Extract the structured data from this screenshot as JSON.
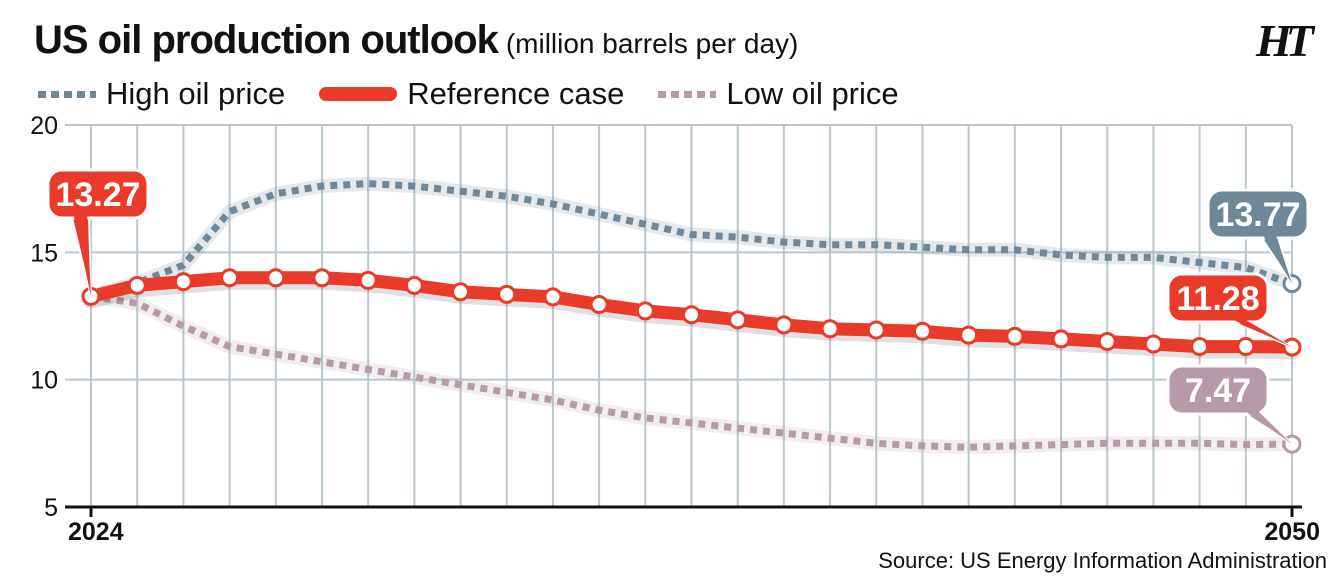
{
  "header": {
    "title": "US oil production outlook",
    "subtitle": "(million barrels per day)",
    "logo": "HT"
  },
  "legend": {
    "high": "High oil price",
    "reference": "Reference case",
    "low": "Low oil price"
  },
  "source": "Source: US Energy Information Administration",
  "colors": {
    "high": "#6f8796",
    "reference": "#e93a2a",
    "low": "#b69aa8",
    "grid": "#b9c8d0"
  },
  "chart_data": {
    "type": "line",
    "title": "US oil production outlook",
    "subtitle": "(million barrels per day)",
    "xlabel": "",
    "ylabel": "",
    "x": [
      2024,
      2025,
      2026,
      2027,
      2028,
      2029,
      2030,
      2031,
      2032,
      2033,
      2034,
      2035,
      2036,
      2037,
      2038,
      2039,
      2040,
      2041,
      2042,
      2043,
      2044,
      2045,
      2046,
      2047,
      2048,
      2049,
      2050
    ],
    "x_tick_labels": [
      "2024",
      "2050"
    ],
    "ylim": [
      5,
      20
    ],
    "y_ticks": [
      5,
      10,
      15,
      20
    ],
    "grid": true,
    "legend_position": "top-left",
    "series": [
      {
        "name": "High oil price",
        "style": "dotted",
        "values": [
          13.27,
          13.8,
          14.5,
          16.6,
          17.3,
          17.6,
          17.7,
          17.6,
          17.4,
          17.2,
          16.9,
          16.5,
          16.1,
          15.7,
          15.6,
          15.4,
          15.3,
          15.3,
          15.2,
          15.1,
          15.1,
          14.9,
          14.8,
          14.8,
          14.6,
          14.4,
          13.77
        ],
        "end_label": "13.77"
      },
      {
        "name": "Reference case",
        "style": "solid",
        "values": [
          13.27,
          13.7,
          13.85,
          14.0,
          14.0,
          14.0,
          13.9,
          13.7,
          13.45,
          13.35,
          13.25,
          12.95,
          12.7,
          12.55,
          12.35,
          12.15,
          12.0,
          11.95,
          11.9,
          11.75,
          11.7,
          11.6,
          11.5,
          11.4,
          11.3,
          11.3,
          11.28
        ],
        "start_label": "13.27",
        "end_label": "11.28"
      },
      {
        "name": "Low oil price",
        "style": "dotted",
        "values": [
          13.27,
          13.0,
          12.1,
          11.3,
          11.0,
          10.7,
          10.4,
          10.1,
          9.8,
          9.5,
          9.2,
          8.8,
          8.5,
          8.3,
          8.1,
          7.9,
          7.7,
          7.5,
          7.4,
          7.35,
          7.4,
          7.45,
          7.5,
          7.5,
          7.5,
          7.45,
          7.47
        ],
        "end_label": "7.47"
      }
    ]
  }
}
